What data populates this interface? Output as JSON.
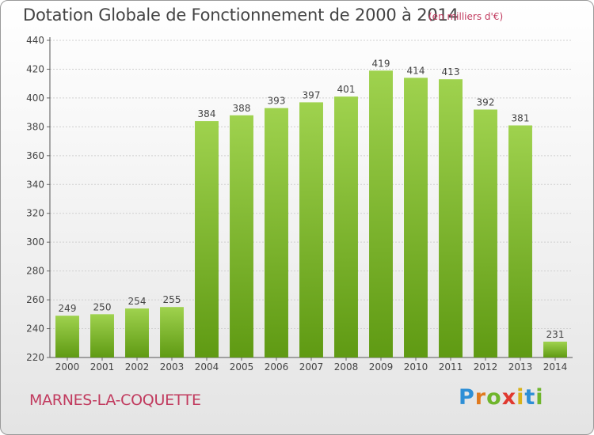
{
  "header": {
    "title": "Dotation Globale de Fonctionnement de 2000 à 2014",
    "subtitle": "(en milliers d'€)"
  },
  "footer": {
    "commune": "MARNES-LA-COQUETTE",
    "logo": "Proxiti"
  },
  "colors": {
    "bar_top": "#9fd24e",
    "bar_bottom": "#5f9a13",
    "title": "#444444",
    "accent": "#c13a5e"
  },
  "chart_data": {
    "type": "bar",
    "categories": [
      "2000",
      "2001",
      "2002",
      "2003",
      "2004",
      "2005",
      "2006",
      "2007",
      "2008",
      "2009",
      "2010",
      "2011",
      "2012",
      "2013",
      "2014"
    ],
    "values": [
      249,
      250,
      254,
      255,
      384,
      388,
      393,
      397,
      401,
      419,
      414,
      413,
      392,
      381,
      231
    ],
    "title": "Dotation Globale de Fonctionnement de 2000 à 2014",
    "xlabel": "",
    "ylabel": "",
    "ylim": [
      220,
      440
    ],
    "yticks": [
      220,
      240,
      260,
      280,
      300,
      320,
      340,
      360,
      380,
      400,
      420,
      440
    ],
    "grid": true,
    "data_labels": true
  }
}
